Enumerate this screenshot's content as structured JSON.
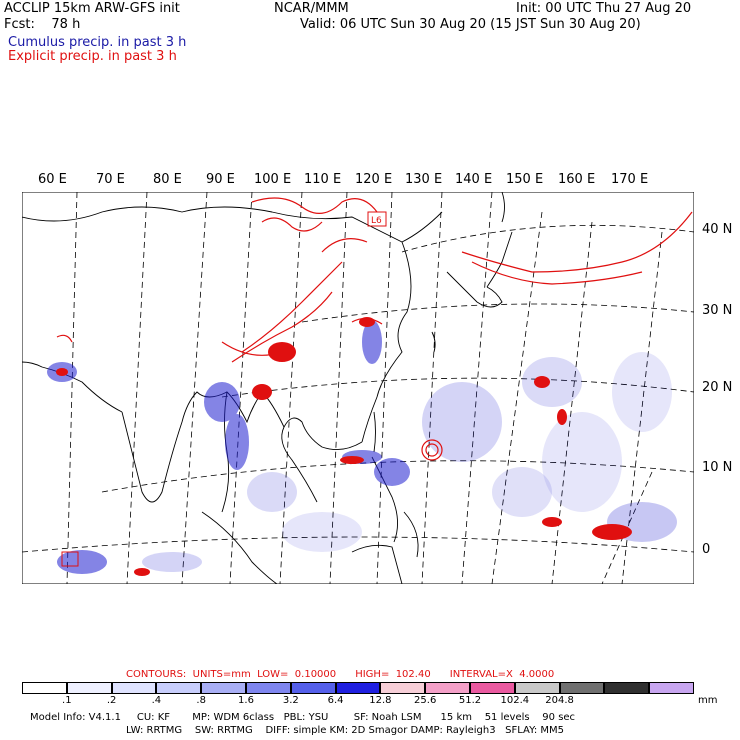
{
  "header": {
    "title_left": "ACCLIP 15km ARW-GFS init",
    "fcst": "Fcst:    78 h",
    "center": "NCAR/MMM",
    "init": "Init: 00 UTC Thu 27 Aug 20",
    "valid": "Valid: 06 UTC Sun 30 Aug 20 (15 JST Sun 30 Aug 20)",
    "cumulus": "Cumulus precip. in past 3 h",
    "explicit": "Explicit precip. in past 3 h"
  },
  "map": {
    "lon_labels": [
      "60 E",
      "70 E",
      "80 E",
      "90 E",
      "100 E",
      "110 E",
      "120 E",
      "130 E",
      "140 E",
      "150 E",
      "160 E",
      "170 E"
    ],
    "lat_labels": [
      "40 N",
      "30 N",
      "20 N",
      "10 N",
      "0"
    ],
    "box_label": "L6",
    "colors": {
      "land": "#ffffff",
      "coast": "#000000",
      "grid": "#000000",
      "cumulus": "#2020d0",
      "explicit": "#e01010"
    }
  },
  "footer": {
    "contours": "CONTOURS:  UNITS=mm  LOW=  0.10000      HIGH=  102.40      INTERVAL=X  4.0000",
    "legend_ticks": [
      ".1",
      ".2",
      ".4",
      ".8",
      "1.6",
      "3.2",
      "6.4",
      "12.8",
      "25.6",
      "51.2",
      "102.4",
      "204.8"
    ],
    "legend_units": "mm",
    "legend_colors": [
      "#ffffff",
      "#eef0ff",
      "#dfe3ff",
      "#c8cefc",
      "#a9aff5",
      "#7f86ef",
      "#5560ea",
      "#1f1fe0",
      "#f7cfd8",
      "#f4a0c8",
      "#ea5aa0",
      "#c9c9c9",
      "#707070",
      "#303030",
      "#c8a6f0"
    ],
    "model_info": "Model Info: V4.1.1     CU: KF       MP: WDM 6class   PBL: YSU        SF: Noah LSM      15 km    51 levels    90 sec",
    "model_info2": "LW: RRTMG    SW: RRTMG    DIFF: simple KM: 2D Smagor DAMP: Rayleigh3   SFLAY: MM5"
  }
}
